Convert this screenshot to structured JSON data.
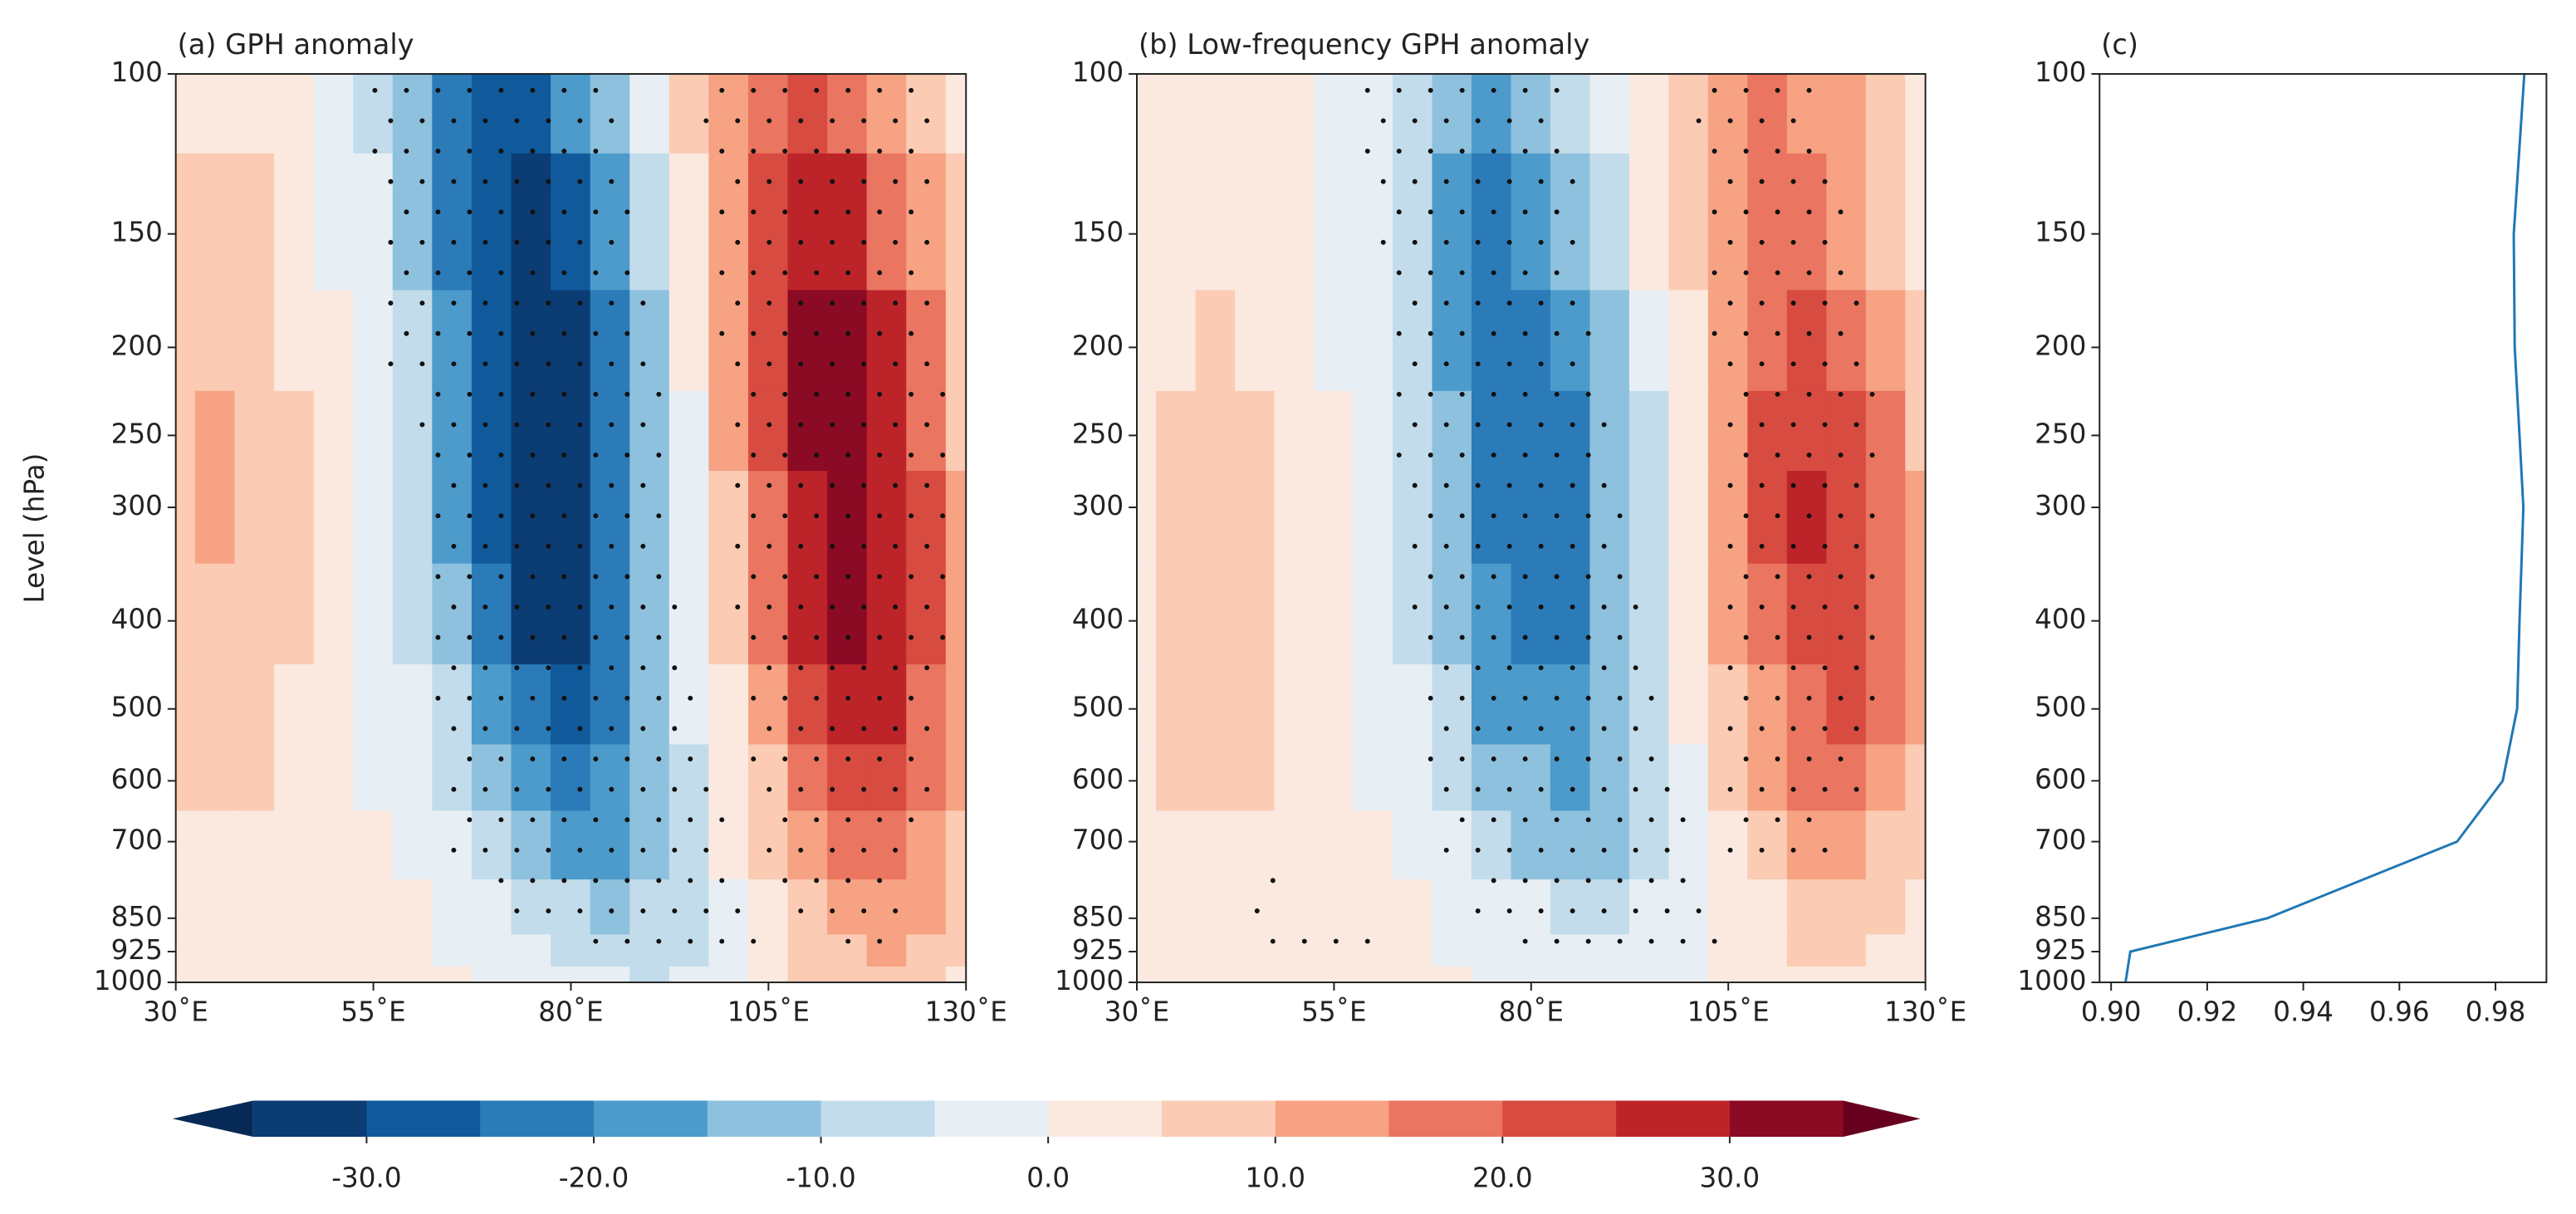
{
  "chart_data": [
    {
      "type": "contour",
      "title": "(a) GPH anomaly",
      "ylabel": "Level (hPa)",
      "x": [
        30,
        35,
        40,
        45,
        50,
        55,
        60,
        65,
        70,
        75,
        80,
        85,
        90,
        95,
        100,
        105,
        110,
        115,
        120,
        125,
        130
      ],
      "y": [
        100,
        150,
        200,
        250,
        300,
        400,
        500,
        600,
        700,
        850,
        925,
        1000
      ],
      "z": [
        [
          2,
          3,
          2,
          1,
          -2,
          -6,
          -13,
          -21,
          -26,
          -26,
          -19,
          -11,
          -2,
          5,
          13,
          19,
          22,
          19,
          13,
          7,
          3
        ],
        [
          5,
          6,
          5,
          3,
          -1,
          -5,
          -12,
          -21,
          -30,
          -32,
          -27,
          -17,
          -6,
          4,
          14,
          23,
          28,
          26,
          19,
          10,
          5
        ],
        [
          6,
          8,
          7,
          4,
          1,
          -3,
          -10,
          -19,
          -29,
          -35,
          -32,
          -23,
          -11,
          1,
          12,
          23,
          31,
          31,
          25,
          16,
          8
        ],
        [
          8,
          10,
          9,
          5,
          1,
          -3,
          -8,
          -17,
          -27,
          -34,
          -33,
          -25,
          -13,
          -1,
          10,
          22,
          31,
          34,
          28,
          19,
          9
        ],
        [
          8,
          10,
          9,
          5,
          1,
          -3,
          -8,
          -17,
          -27,
          -34,
          -33,
          -25,
          -14,
          -2,
          8,
          19,
          29,
          33,
          29,
          20,
          11
        ],
        [
          7,
          9,
          8,
          5,
          1,
          -2,
          -6,
          -14,
          -23,
          -31,
          -31,
          -25,
          -15,
          -4,
          6,
          16,
          25,
          30,
          28,
          20,
          11
        ],
        [
          5,
          7,
          6,
          4,
          1,
          -1,
          -4,
          -10,
          -18,
          -25,
          -27,
          -23,
          -14,
          -5,
          3,
          12,
          20,
          25,
          25,
          19,
          11
        ],
        [
          5,
          6,
          5,
          3,
          1,
          -1,
          -3,
          -7,
          -13,
          -19,
          -22,
          -19,
          -13,
          -6,
          1,
          9,
          16,
          21,
          22,
          17,
          11
        ],
        [
          3,
          4,
          4,
          2,
          1,
          0,
          -2,
          -4,
          -8,
          -13,
          -17,
          -16,
          -12,
          -6,
          0,
          7,
          13,
          17,
          18,
          14,
          9
        ],
        [
          2,
          2,
          2,
          1,
          0,
          0,
          0,
          -1,
          -3,
          -6,
          -9,
          -11,
          -10,
          -7,
          -2,
          3,
          8,
          12,
          13,
          11,
          7
        ],
        [
          1,
          1,
          1,
          1,
          0,
          0,
          0,
          -1,
          -2,
          -3,
          -6,
          -8,
          -8,
          -6,
          -2,
          2,
          6,
          9,
          10,
          8,
          5
        ],
        [
          1,
          1,
          1,
          1,
          0,
          0,
          0,
          0,
          -1,
          -2,
          -4,
          -5,
          -6,
          -5,
          -2,
          1,
          5,
          7,
          8,
          7,
          4
        ]
      ],
      "stippling": [
        [
          [
            55,
            87
          ],
          [
            96,
            126
          ]
        ],
        [
          [
            56,
            88
          ],
          [
            98,
            127
          ]
        ],
        [
          [
            57,
            90
          ],
          [
            99,
            127
          ]
        ],
        [
          [
            60,
            92
          ],
          [
            100,
            128
          ]
        ],
        [
          [
            62,
            93
          ],
          [
            100,
            128
          ]
        ],
        [
          [
            62,
            94
          ],
          [
            101,
            128
          ]
        ],
        [
          [
            63,
            96
          ],
          [
            102,
            127
          ]
        ],
        [
          [
            64,
            98
          ],
          [
            103,
            126
          ]
        ],
        [
          [
            65,
            100
          ],
          [
            104,
            124
          ]
        ],
        [
          [
            70,
            102
          ],
          [
            106,
            122
          ]
        ],
        [
          [
            80,
            105
          ],
          [
            112,
            120
          ]
        ],
        []
      ],
      "xlim": [
        30,
        130
      ],
      "ylim": [
        1000,
        100
      ],
      "yscale": "log",
      "xticks": [
        {
          "value": 30,
          "label": "30˚E"
        },
        {
          "value": 55,
          "label": "55˚E"
        },
        {
          "value": 80,
          "label": "80˚E"
        },
        {
          "value": 105,
          "label": "105˚E"
        },
        {
          "value": 130,
          "label": "130˚E"
        }
      ],
      "yticks": [
        100,
        150,
        200,
        250,
        300,
        400,
        500,
        600,
        700,
        850,
        925,
        1000
      ]
    },
    {
      "type": "contour",
      "title": "(b) Low-frequency GPH anomaly",
      "x": [
        30,
        35,
        40,
        45,
        50,
        55,
        60,
        65,
        70,
        75,
        80,
        85,
        90,
        95,
        100,
        105,
        110,
        115,
        120,
        125,
        130
      ],
      "y": [
        100,
        150,
        200,
        250,
        300,
        400,
        500,
        600,
        700,
        850,
        925,
        1000
      ],
      "z": [
        [
          1,
          2,
          2,
          2,
          0,
          -2,
          -5,
          -10,
          -14,
          -16,
          -14,
          -10,
          -4,
          1,
          7,
          12,
          15,
          14,
          11,
          6,
          3
        ],
        [
          1,
          2,
          3,
          2,
          1,
          -1,
          -5,
          -10,
          -16,
          -21,
          -20,
          -15,
          -8,
          0,
          6,
          13,
          17,
          18,
          14,
          9,
          4
        ],
        [
          2,
          4,
          5,
          4,
          2,
          -1,
          -4,
          -9,
          -16,
          -22,
          -24,
          -20,
          -12,
          -4,
          4,
          12,
          19,
          21,
          19,
          13,
          7
        ],
        [
          3,
          6,
          7,
          6,
          3,
          0,
          -3,
          -8,
          -15,
          -22,
          -25,
          -22,
          -14,
          -6,
          3,
          12,
          20,
          24,
          22,
          16,
          9
        ],
        [
          4,
          7,
          8,
          7,
          3,
          0,
          -3,
          -8,
          -15,
          -22,
          -25,
          -22,
          -15,
          -6,
          2,
          11,
          20,
          25,
          24,
          18,
          11
        ],
        [
          4,
          7,
          8,
          7,
          3,
          0,
          -2,
          -6,
          -13,
          -19,
          -23,
          -21,
          -15,
          -7,
          2,
          10,
          18,
          23,
          22,
          17,
          10
        ],
        [
          3,
          6,
          7,
          6,
          3,
          1,
          -1,
          -5,
          -10,
          -16,
          -20,
          -19,
          -14,
          -7,
          0,
          7,
          14,
          19,
          20,
          16,
          10
        ],
        [
          3,
          5,
          6,
          5,
          3,
          1,
          -1,
          -3,
          -7,
          -12,
          -15,
          -16,
          -12,
          -7,
          -1,
          6,
          11,
          15,
          16,
          13,
          8
        ],
        [
          2,
          3,
          4,
          3,
          2,
          1,
          0,
          -2,
          -4,
          -7,
          -11,
          -12,
          -11,
          -6,
          -2,
          4,
          8,
          11,
          12,
          9,
          6
        ],
        [
          1,
          2,
          2,
          2,
          1,
          0,
          0,
          0,
          -1,
          -3,
          -5,
          -7,
          -7,
          -5,
          -2,
          1,
          4,
          7,
          7,
          5,
          3
        ],
        [
          0,
          1,
          1,
          1,
          0,
          0,
          0,
          0,
          -1,
          -2,
          -3,
          -5,
          -5,
          -4,
          -2,
          1,
          3,
          5,
          5,
          4,
          2
        ],
        [
          0,
          1,
          1,
          1,
          0,
          0,
          0,
          0,
          0,
          -1,
          -2,
          -3,
          -3,
          -3,
          -1,
          0,
          2,
          3,
          3,
          2,
          2
        ]
      ],
      "stippling": [
        [
          [
            58,
            84
          ],
          [
            101,
            117
          ]
        ],
        [
          [
            60,
            87
          ],
          [
            102,
            120
          ]
        ],
        [
          [
            62,
            89
          ],
          [
            103,
            122
          ]
        ],
        [
          [
            63,
            90
          ],
          [
            104,
            125
          ]
        ],
        [
          [
            64,
            92
          ],
          [
            104,
            125
          ]
        ],
        [
          [
            65,
            94
          ],
          [
            104,
            125
          ]
        ],
        [
          [
            66,
            96
          ],
          [
            104,
            124
          ]
        ],
        [
          [
            67,
            98
          ],
          [
            104,
            122
          ]
        ],
        [
          [
            68,
            100
          ],
          [
            105,
            119
          ]
        ],
        [
          [
            45,
            48
          ],
          [
            72,
            103
          ]
        ],
        [
          [
            47,
            60
          ],
          [
            78,
            106
          ]
        ],
        []
      ],
      "xlim": [
        30,
        130
      ],
      "ylim": [
        1000,
        100
      ],
      "yscale": "log",
      "xticks": [
        {
          "value": 30,
          "label": "30˚E"
        },
        {
          "value": 55,
          "label": "55˚E"
        },
        {
          "value": 80,
          "label": "80˚E"
        },
        {
          "value": 105,
          "label": "105˚E"
        },
        {
          "value": 130,
          "label": "130˚E"
        }
      ],
      "yticks": [
        100,
        150,
        200,
        250,
        300,
        400,
        500,
        600,
        700,
        850,
        925,
        1000
      ]
    },
    {
      "type": "line",
      "title": "(c)",
      "y": [
        100,
        150,
        200,
        250,
        300,
        400,
        500,
        600,
        700,
        850,
        925,
        1000
      ],
      "series": [
        {
          "color": "#1f77b4",
          "values": [
            0.986,
            0.9838,
            0.984,
            0.985,
            0.9858,
            0.985,
            0.9845,
            0.9815,
            0.972,
            0.9325,
            0.904,
            0.903
          ]
        }
      ],
      "xlim": [
        0.8976,
        0.9906
      ],
      "ylim": [
        1000,
        100
      ],
      "yscale": "log",
      "xticks": [
        {
          "value": 0.9,
          "label": "0.90"
        },
        0.92,
        0.94,
        0.96,
        0.98
      ],
      "yticks": [
        100,
        150,
        200,
        250,
        300,
        400,
        500,
        600,
        700,
        850,
        925,
        1000
      ]
    }
  ],
  "colorbar": {
    "levels": [
      -35,
      -30,
      -25,
      -20,
      -15,
      -10,
      -5,
      0,
      5,
      10,
      15,
      20,
      25,
      30,
      35
    ],
    "colors": [
      "#0b3c73",
      "#105a9c",
      "#2b7bb8",
      "#4c9bcb",
      "#8ec1dd",
      "#c3dceb",
      "#e7eff4",
      "#fbe9e0",
      "#fbcbb3",
      "#f6a283",
      "#ea7560",
      "#d84b40",
      "#bd2429",
      "#8b0a24"
    ],
    "extend_colors": [
      "#062a55",
      "#67001f"
    ],
    "ticks": [
      {
        "value": -30,
        "label": "-30.0"
      },
      {
        "value": -20,
        "label": "-20.0"
      },
      {
        "value": -10,
        "label": "-10.0"
      },
      {
        "value": 0,
        "label": "0.0"
      },
      {
        "value": 10,
        "label": "10.0"
      },
      {
        "value": 20,
        "label": "20.0"
      },
      {
        "value": 30,
        "label": "30.0"
      }
    ]
  }
}
